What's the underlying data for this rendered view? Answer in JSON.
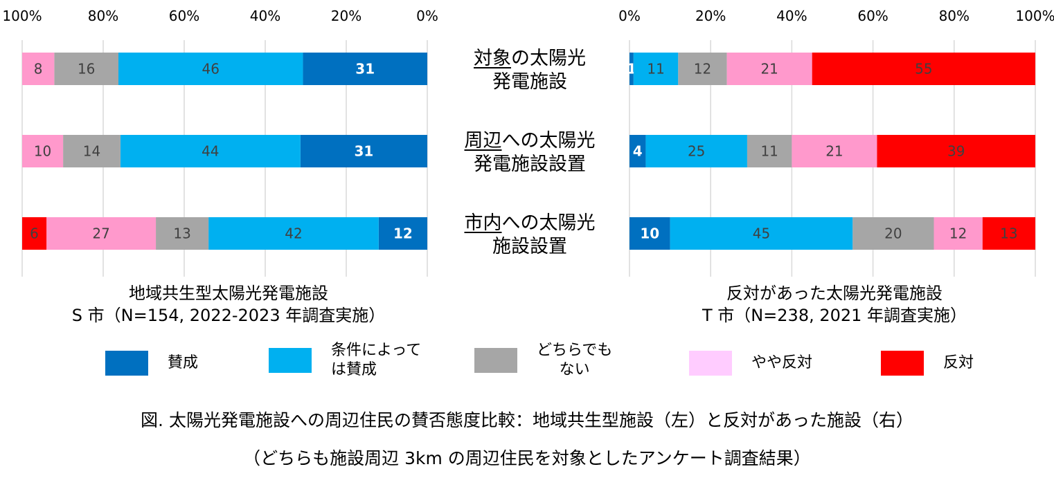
{
  "chart_data": [
    {
      "type": "bar",
      "orientation": "horizontal",
      "stacked": true,
      "reversed_axis": true,
      "title": "地域共生型太陽光発電施設",
      "subtitle": "S 市（N=154, 2022-2023 年調査実施）",
      "xlim": [
        0,
        100
      ],
      "tick_labels": [
        "100%",
        "80%",
        "60%",
        "40%",
        "20%",
        "0%"
      ],
      "ticks": [
        100,
        80,
        60,
        40,
        20,
        0
      ],
      "categories": [
        "対象の太陽光発電施設",
        "周辺への太陽光発電施設設置",
        "市内への太陽光施設設置"
      ],
      "series": [
        {
          "name": "賛成",
          "values": [
            31,
            31,
            12
          ]
        },
        {
          "name": "条件によっては賛成",
          "values": [
            46,
            44,
            42
          ]
        },
        {
          "name": "どちらでもない",
          "values": [
            16,
            14,
            13
          ]
        },
        {
          "name": "やや反対",
          "values": [
            8,
            10,
            27
          ]
        },
        {
          "name": "反対",
          "values": [
            0,
            0,
            6
          ]
        }
      ]
    },
    {
      "type": "bar",
      "orientation": "horizontal",
      "stacked": true,
      "reversed_axis": false,
      "title": "反対があった太陽光発電施設",
      "subtitle": "T 市（N=238, 2021 年調査実施）",
      "xlim": [
        0,
        100
      ],
      "tick_labels": [
        "0%",
        "20%",
        "40%",
        "60%",
        "80%",
        "100%"
      ],
      "ticks": [
        0,
        20,
        40,
        60,
        80,
        100
      ],
      "categories": [
        "対象の太陽光発電施設",
        "周辺への太陽光発電施設設置",
        "市内への太陽光施設設置"
      ],
      "series": [
        {
          "name": "賛成",
          "values": [
            1,
            4,
            10
          ]
        },
        {
          "name": "条件によっては賛成",
          "values": [
            11,
            25,
            45
          ]
        },
        {
          "name": "どちらでもない",
          "values": [
            12,
            11,
            20
          ]
        },
        {
          "name": "やや反対",
          "values": [
            21,
            21,
            12
          ]
        },
        {
          "name": "反対",
          "values": [
            55,
            39,
            13
          ]
        }
      ]
    }
  ],
  "row_labels": [
    {
      "u": "対象",
      "rest1": "の太陽光",
      "line2": "発電施設"
    },
    {
      "u": "周辺",
      "rest1": "への太陽光",
      "line2": "発電施設設置"
    },
    {
      "u": "市内",
      "rest1": "への太陽光",
      "line2": "施設設置"
    }
  ],
  "legend": [
    {
      "label1": "賛成",
      "label2": "",
      "color": "#0070c0"
    },
    {
      "label1": "条件によって",
      "label2": "は賛成",
      "color": "#00b0f0"
    },
    {
      "label1": "どちらでも",
      "label2": "ない",
      "color": "#a6a6a6"
    },
    {
      "label1": "やや反対",
      "label2": "",
      "color": "#ffccff"
    },
    {
      "label1": "反対",
      "label2": "",
      "color": "#ff0000"
    }
  ],
  "bar_colors": [
    "#0070c0",
    "#00b0f0",
    "#a6a6a6",
    "#ff99cc",
    "#ff0000"
  ],
  "caption": {
    "line1": "図. 太陽光発電施設への周辺住民の賛否態度比較：地域共生型施設（左）と反対があった施設（右）",
    "line2": "（どちらも施設周辺 3km の周辺住民を対象としたアンケート調査結果）"
  }
}
